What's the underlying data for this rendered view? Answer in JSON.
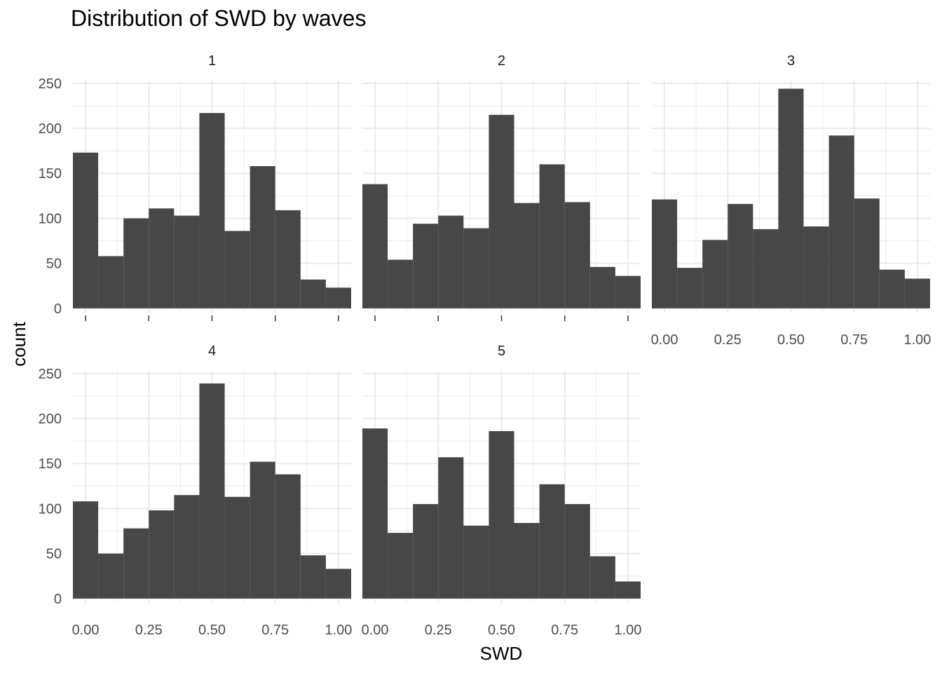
{
  "chart_data": {
    "type": "bar",
    "title": "Distribution of SWD by waves",
    "xlabel": "SWD",
    "ylabel": "count",
    "bins": [
      0.0,
      0.1,
      0.2,
      0.3,
      0.4,
      0.5,
      0.6,
      0.7,
      0.8,
      0.9,
      1.0
    ],
    "bin_width": 0.1,
    "xlim": [
      -0.05,
      1.05
    ],
    "ylim": [
      0,
      250
    ],
    "x_ticks": [
      "0.00",
      "0.25",
      "0.50",
      "0.75",
      "1.00"
    ],
    "y_ticks": [
      "0",
      "50",
      "100",
      "150",
      "200",
      "250"
    ],
    "grid": true,
    "bar_color": "#474747",
    "grid_color": "#ebebeb",
    "facets": [
      {
        "label": "1",
        "values": [
          173,
          58,
          100,
          111,
          103,
          217,
          86,
          158,
          109,
          32,
          23
        ]
      },
      {
        "label": "2",
        "values": [
          138,
          54,
          94,
          103,
          89,
          215,
          117,
          160,
          118,
          46,
          36
        ]
      },
      {
        "label": "3",
        "values": [
          121,
          45,
          76,
          116,
          88,
          244,
          91,
          192,
          122,
          43,
          33
        ]
      },
      {
        "label": "4",
        "values": [
          108,
          50,
          78,
          98,
          115,
          239,
          113,
          152,
          138,
          48,
          33
        ]
      },
      {
        "label": "5",
        "values": [
          189,
          73,
          105,
          157,
          81,
          186,
          84,
          127,
          105,
          47,
          19
        ]
      }
    ]
  }
}
